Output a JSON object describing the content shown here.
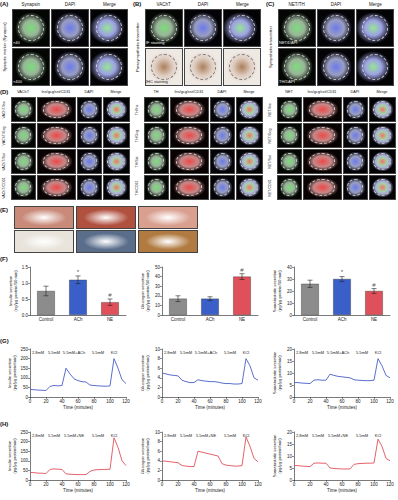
{
  "panels": [
    {
      "label": "(A)",
      "side_label": "Synaptic marker (Synapsin)",
      "columns": [
        "Synapsin",
        "DAPI",
        "Merge"
      ],
      "row_tags": [
        "×40",
        "×400"
      ]
    },
    {
      "label": "(B)",
      "side_label": "Parasympathetic transmitter",
      "columns": [
        "VAChT",
        "DAPI",
        "Merge"
      ],
      "row_tags": [
        "IF staining",
        "IHC staining"
      ]
    },
    {
      "label": "(C)",
      "side_label": "Sympathetic transmitter",
      "columns": [
        "NET/TH",
        "DAPI",
        "Merge"
      ],
      "row_tags": [
        "NET/DAPI",
        "TH/DAPI"
      ]
    }
  ],
  "panel_D": {
    "label": "(D)",
    "groups": [
      {
        "columns": [
          "VAChT",
          "Ins/gcg/sst/CD31",
          "DAPI",
          "Merge"
        ],
        "rows": [
          "VAChT/Ins",
          "VAChT/Gcg",
          "VAChT/Sst",
          "VAChT/CD31"
        ]
      },
      {
        "columns": [
          "TH",
          "Ins/gcg/sst/CD31",
          "DAPI",
          "Merge"
        ],
        "rows": [
          "TH/Ins",
          "TH/Gcg",
          "TH/Sst",
          "TH/CD31"
        ]
      },
      {
        "columns": [
          "NET",
          "Ins/gcg/sst/CD31",
          "DAPI",
          "Merge"
        ],
        "rows": [
          "NET/Ins",
          "NET/Gcg",
          "NET/Sst",
          "NET/CD31"
        ]
      }
    ]
  },
  "panel_E": {
    "label": "(E)"
  },
  "chart_panels": [
    "(F)",
    "(G)",
    "(H)"
  ],
  "chart_data": [
    {
      "type": "bar",
      "categories": [
        "Control",
        "ACh",
        "NE"
      ],
      "values": [
        0.75,
        1.1,
        0.4
      ],
      "errors": [
        0.15,
        0.12,
        0.1
      ],
      "colors": [
        "#8c8c8c",
        "#3a5fc8",
        "#e0505a"
      ],
      "ylim": [
        0,
        1.5
      ],
      "yticks": [
        {
          "value": 0,
          "label": "0.0"
        },
        {
          "value": 0.5,
          "label": "0.5"
        },
        {
          "value": 1,
          "label": "1.0"
        },
        {
          "value": 1.5,
          "label": "1.5"
        }
      ],
      "y_label": "Insulin secretion\n(ng/μg protein/30 min)",
      "grid": false,
      "annotations": [
        {
          "text": "*",
          "category": "ACh",
          "y": 1.35
        },
        {
          "text": "#",
          "category": "NE",
          "y": 0.62
        }
      ]
    },
    {
      "type": "bar",
      "categories": [
        "Control",
        "ACh",
        "NE"
      ],
      "values": [
        17,
        17,
        40
      ],
      "errors": [
        3,
        2,
        3
      ],
      "colors": [
        "#8c8c8c",
        "#3a5fc8",
        "#e0505a"
      ],
      "ylim": [
        0,
        50
      ],
      "yticks": [
        0,
        10,
        20,
        30,
        40,
        50
      ],
      "y_label": "Glucagon secretion\n(pg/μg protein/30 min)",
      "grid": false,
      "annotations": [
        {
          "text": "#",
          "category": "NE",
          "y": 47
        }
      ]
    },
    {
      "type": "bar",
      "categories": [
        "Control",
        "ACh",
        "NE"
      ],
      "values": [
        26,
        30,
        20
      ],
      "errors": [
        3,
        2,
        2
      ],
      "colors": [
        "#8c8c8c",
        "#3a5fc8",
        "#e0505a"
      ],
      "ylim": [
        0,
        40
      ],
      "yticks": [
        0,
        10,
        20,
        30,
        40
      ],
      "y_label": "Somatostatin secretion\n(pg/μg protein/30 min)",
      "grid": false,
      "annotations": [
        {
          "text": "*",
          "category": "ACh",
          "y": 36
        },
        {
          "text": "#",
          "category": "NE",
          "y": 25
        }
      ]
    },
    {
      "type": "line",
      "x": [
        0,
        5,
        10,
        15,
        20,
        25,
        30,
        35,
        40,
        45,
        50,
        55,
        60,
        65,
        70,
        75,
        80,
        85,
        90,
        95,
        100,
        105,
        110,
        115,
        120
      ],
      "values": [
        40,
        38,
        36,
        35,
        34,
        55,
        60,
        58,
        60,
        150,
        120,
        95,
        85,
        80,
        78,
        62,
        60,
        58,
        57,
        56,
        58,
        200,
        150,
        90,
        70
      ],
      "color": "#4a5fc8",
      "xlim": [
        0,
        120
      ],
      "xticks": [
        0,
        20,
        40,
        60,
        80,
        100,
        120
      ],
      "ylim": [
        0,
        250
      ],
      "yticks": [
        0,
        50,
        100,
        150,
        200,
        250
      ],
      "x_label": "Time (minutes)",
      "y_label": "Insulin secretion\n(pg/μg protein/min)",
      "grid": false,
      "segments": [
        {
          "label": "2.8mM",
          "start": 0,
          "end": 20
        },
        {
          "label": "5.5mM",
          "start": 20,
          "end": 40
        },
        {
          "label": "5.5mM+ACh",
          "start": 40,
          "end": 70
        },
        {
          "label": "5.5mM",
          "start": 70,
          "end": 100
        },
        {
          "label": "KCl",
          "start": 100,
          "end": 110
        }
      ]
    },
    {
      "type": "line",
      "x": [
        0,
        5,
        10,
        15,
        20,
        25,
        30,
        35,
        40,
        45,
        50,
        55,
        60,
        65,
        70,
        75,
        80,
        85,
        90,
        95,
        100,
        105,
        110,
        115,
        120
      ],
      "values": [
        5,
        4.8,
        4.6,
        4.5,
        4.4,
        3.5,
        3.2,
        3.0,
        3.0,
        3.6,
        3.4,
        3.3,
        3.2,
        3.2,
        3.1,
        2.9,
        2.8,
        2.8,
        2.7,
        2.7,
        2.8,
        8,
        6.5,
        4,
        3.5
      ],
      "color": "#4a5fc8",
      "xlim": [
        0,
        120
      ],
      "xticks": [
        0,
        20,
        40,
        60,
        80,
        100,
        120
      ],
      "ylim": [
        0,
        10
      ],
      "yticks": [
        0,
        2,
        4,
        6,
        8,
        10
      ],
      "x_label": "Time (minutes)",
      "y_label": "Glucagon secretion\n(pg/μg protein/min)",
      "grid": false,
      "segments": [
        {
          "label": "2.8mM",
          "start": 0,
          "end": 20
        },
        {
          "label": "5.5mM",
          "start": 20,
          "end": 40
        },
        {
          "label": "5.5mM+ACh",
          "start": 40,
          "end": 70
        },
        {
          "label": "5.5mM",
          "start": 70,
          "end": 100
        },
        {
          "label": "KCl",
          "start": 100,
          "end": 110
        }
      ]
    },
    {
      "type": "line",
      "x": [
        0,
        5,
        10,
        15,
        20,
        25,
        30,
        35,
        40,
        45,
        50,
        55,
        60,
        65,
        70,
        75,
        80,
        85,
        90,
        95,
        100,
        105,
        110,
        115,
        120
      ],
      "values": [
        6,
        6,
        5.8,
        5.7,
        5.6,
        7,
        7.2,
        7,
        7,
        9.5,
        9,
        8.6,
        8.4,
        8.2,
        8,
        7.2,
        7,
        6.9,
        6.8,
        6.8,
        7,
        16,
        13,
        9,
        8
      ],
      "color": "#4a5fc8",
      "xlim": [
        0,
        120
      ],
      "xticks": [
        0,
        20,
        40,
        60,
        80,
        100,
        120
      ],
      "ylim": [
        0,
        20
      ],
      "yticks": [
        0,
        5,
        10,
        15,
        20
      ],
      "x_label": "Time (minutes)",
      "y_label": "Somatostatin secretion\n(pg/μg protein/min)",
      "grid": false,
      "segments": [
        {
          "label": "2.8mM",
          "start": 0,
          "end": 20
        },
        {
          "label": "5.5mM",
          "start": 20,
          "end": 40
        },
        {
          "label": "5.5mM+ACh",
          "start": 40,
          "end": 70
        },
        {
          "label": "5.5mM",
          "start": 70,
          "end": 100
        },
        {
          "label": "KCl",
          "start": 100,
          "end": 110
        }
      ]
    },
    {
      "type": "line",
      "x": [
        0,
        5,
        10,
        15,
        20,
        25,
        30,
        35,
        40,
        45,
        50,
        55,
        60,
        65,
        70,
        75,
        80,
        85,
        90,
        95,
        100,
        105,
        110,
        115,
        120
      ],
      "values": [
        40,
        38,
        36,
        35,
        34,
        55,
        58,
        56,
        55,
        32,
        30,
        29,
        28,
        28,
        28,
        45,
        52,
        54,
        55,
        55,
        56,
        220,
        170,
        100,
        75
      ],
      "color": "#e0505a",
      "xlim": [
        0,
        120
      ],
      "xticks": [
        0,
        20,
        40,
        60,
        80,
        100,
        120
      ],
      "ylim": [
        0,
        250
      ],
      "yticks": [
        0,
        50,
        100,
        150,
        200,
        250
      ],
      "x_label": "Time (minutes)",
      "y_label": "Insulin secretion\n(pg/μg protein/min)",
      "grid": false,
      "segments": [
        {
          "label": "2.8mM",
          "start": 0,
          "end": 20
        },
        {
          "label": "5.5mM",
          "start": 20,
          "end": 40
        },
        {
          "label": "5.5mM+NE",
          "start": 40,
          "end": 70
        },
        {
          "label": "5.5mM",
          "start": 70,
          "end": 100
        },
        {
          "label": "KCl",
          "start": 100,
          "end": 110
        }
      ]
    },
    {
      "type": "line",
      "x": [
        0,
        5,
        10,
        15,
        20,
        25,
        30,
        35,
        40,
        45,
        50,
        55,
        60,
        65,
        70,
        75,
        80,
        85,
        90,
        95,
        100,
        105,
        110,
        115,
        120
      ],
      "values": [
        4,
        3.9,
        3.8,
        3.7,
        3.6,
        3,
        2.9,
        2.8,
        2.8,
        6,
        5.8,
        5.6,
        5.4,
        5.2,
        5,
        3.4,
        3.1,
        3,
        2.9,
        2.9,
        3,
        9,
        7,
        4.5,
        3.8
      ],
      "color": "#e0505a",
      "xlim": [
        0,
        120
      ],
      "xticks": [
        0,
        20,
        40,
        60,
        80,
        100,
        120
      ],
      "ylim": [
        0,
        10
      ],
      "yticks": [
        0,
        2,
        4,
        6,
        8,
        10
      ],
      "x_label": "Time (minutes)",
      "y_label": "Glucagon secretion\n(pg/μg protein/min)",
      "grid": false,
      "segments": [
        {
          "label": "2.8mM",
          "start": 0,
          "end": 20
        },
        {
          "label": "5.5mM",
          "start": 20,
          "end": 40
        },
        {
          "label": "5.5mM+NE",
          "start": 40,
          "end": 70
        },
        {
          "label": "5.5mM",
          "start": 70,
          "end": 100
        },
        {
          "label": "KCl",
          "start": 100,
          "end": 110
        }
      ]
    },
    {
      "type": "line",
      "x": [
        0,
        5,
        10,
        15,
        20,
        25,
        30,
        35,
        40,
        45,
        50,
        55,
        60,
        65,
        70,
        75,
        80,
        85,
        90,
        95,
        100,
        105,
        110,
        115,
        120
      ],
      "values": [
        6,
        6,
        5.8,
        5.7,
        5.6,
        7,
        7.1,
        7,
        7,
        5,
        4.8,
        4.7,
        4.6,
        4.6,
        4.6,
        6.5,
        6.8,
        6.9,
        7,
        7,
        7.1,
        17,
        14,
        9,
        8
      ],
      "color": "#e0505a",
      "xlim": [
        0,
        120
      ],
      "xticks": [
        0,
        20,
        40,
        60,
        80,
        100,
        120
      ],
      "ylim": [
        0,
        20
      ],
      "yticks": [
        0,
        5,
        10,
        15,
        20
      ],
      "x_label": "Time (minutes)",
      "y_label": "Somatostatin secretion\n(pg/μg protein/min)",
      "grid": false,
      "segments": [
        {
          "label": "2.8mM",
          "start": 0,
          "end": 20
        },
        {
          "label": "5.5mM",
          "start": 20,
          "end": 40
        },
        {
          "label": "5.5mM+NE",
          "start": 40,
          "end": 70
        },
        {
          "label": "5.5mM",
          "start": 70,
          "end": 100
        },
        {
          "label": "KCl",
          "start": 100,
          "end": 110
        }
      ]
    }
  ]
}
